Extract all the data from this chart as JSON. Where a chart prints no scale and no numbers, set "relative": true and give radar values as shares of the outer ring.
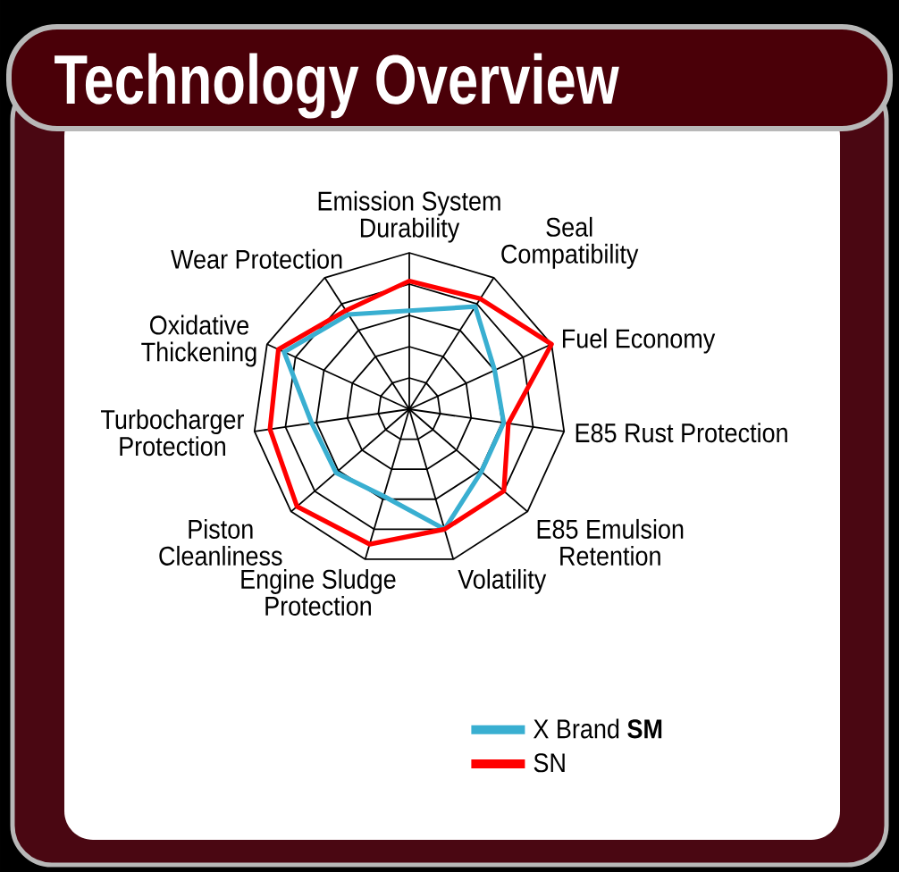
{
  "chart_data": {
    "type": "radar",
    "title": "Technology Overview",
    "categories": [
      "Emission System Durability",
      "Seal Compatibility",
      "Fuel Economy",
      "E85 Rust Protection",
      "E85 Emulsion Retention",
      "Volatility",
      "Engine Sludge Protection",
      "Piston Cleanliness",
      "Turbocharger Protection",
      "Oxidative Thickening",
      "Wear Protection"
    ],
    "relative": true,
    "grid": true,
    "legend": "bottom right",
    "series": [
      {
        "name": "X Brand **SM**",
        "color": "#39afd1",
        "values": [
          0.63,
          0.78,
          0.6,
          0.61,
          0.61,
          0.8,
          0.58,
          0.62,
          0.63,
          0.88,
          0.72
        ]
      },
      {
        "name": "SN",
        "color": "#ff0000",
        "values": [
          0.82,
          0.84,
          1.0,
          0.64,
          0.8,
          0.8,
          0.9,
          0.95,
          0.9,
          0.92,
          0.75
        ]
      }
    ]
  }
}
